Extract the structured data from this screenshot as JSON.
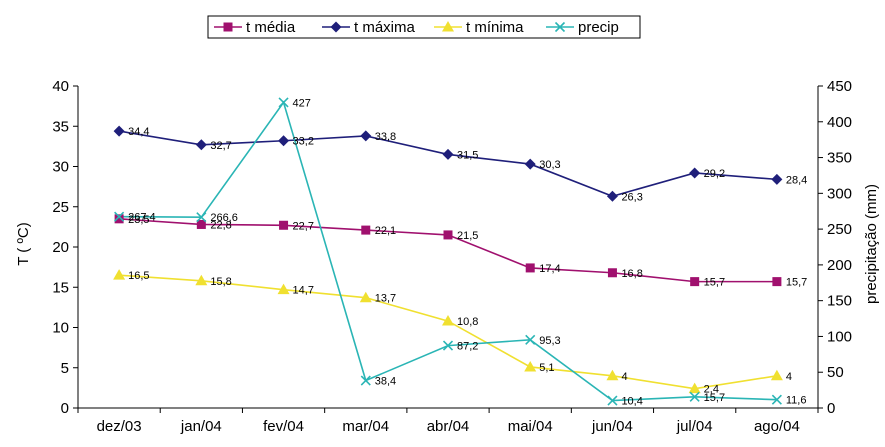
{
  "chart_data": {
    "type": "line",
    "categories": [
      "dez/03",
      "jan/04",
      "fev/04",
      "mar/04",
      "abr/04",
      "mai/04",
      "jun/04",
      "jul/04",
      "ago/04"
    ],
    "series": [
      {
        "name": "t média",
        "axis": "left",
        "color": "#a0106e",
        "marker": "square",
        "values": [
          23.5,
          22.8,
          22.7,
          22.1,
          21.5,
          17.4,
          16.8,
          15.7,
          15.7
        ],
        "labels": [
          "23,5",
          "22,8",
          "22,7",
          "22,1",
          "21,5",
          "17,4",
          "16,8",
          "15,7",
          "15,7"
        ]
      },
      {
        "name": "t máxima",
        "axis": "left",
        "color": "#1f1f7a",
        "marker": "diamond",
        "values": [
          34.4,
          32.7,
          33.2,
          33.8,
          31.5,
          30.3,
          26.3,
          29.2,
          28.4
        ],
        "labels": [
          "34,4",
          "32,7",
          "33,2",
          "33,8",
          "31,5",
          "30,3",
          "26,3",
          "29,2",
          "28,4"
        ]
      },
      {
        "name": "t mínima",
        "axis": "left",
        "color": "#f0e030",
        "marker": "triangle",
        "values": [
          16.5,
          15.8,
          14.7,
          13.7,
          10.8,
          5.1,
          4,
          2.4,
          4
        ],
        "labels": [
          "16,5",
          "15,8",
          "14,7",
          "13,7",
          "10,8",
          "5,1",
          "4",
          "2,4",
          "4"
        ]
      },
      {
        "name": "precip",
        "axis": "right",
        "color": "#2ab5b5",
        "marker": "x",
        "values": [
          267.4,
          266.6,
          427,
          38.4,
          87.2,
          95.3,
          10.4,
          15.7,
          11.6
        ],
        "labels": [
          "267,4",
          "266,6",
          "427",
          "38,4",
          "87,2",
          "95,3",
          "10,4",
          "15,7",
          "11,6"
        ]
      }
    ],
    "y_left": {
      "label": "T ( ºC)",
      "min": 0,
      "max": 40,
      "ticks": [
        0,
        5,
        10,
        15,
        20,
        25,
        30,
        35,
        40
      ]
    },
    "y_right": {
      "label": "precipitação (mm)",
      "min": 0,
      "max": 450,
      "ticks": [
        0,
        50,
        100,
        150,
        200,
        250,
        300,
        350,
        400,
        450
      ]
    },
    "legend": {
      "position": "top-center"
    },
    "grid": false
  }
}
